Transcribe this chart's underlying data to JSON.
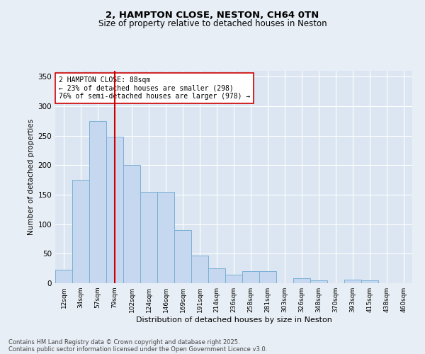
{
  "title1": "2, HAMPTON CLOSE, NESTON, CH64 0TN",
  "title2": "Size of property relative to detached houses in Neston",
  "xlabel": "Distribution of detached houses by size in Neston",
  "ylabel": "Number of detached properties",
  "bin_labels": [
    "12sqm",
    "34sqm",
    "57sqm",
    "79sqm",
    "102sqm",
    "124sqm",
    "146sqm",
    "169sqm",
    "191sqm",
    "214sqm",
    "236sqm",
    "258sqm",
    "281sqm",
    "303sqm",
    "326sqm",
    "348sqm",
    "370sqm",
    "393sqm",
    "415sqm",
    "438sqm",
    "460sqm"
  ],
  "bar_values": [
    23,
    175,
    275,
    248,
    200,
    155,
    155,
    90,
    47,
    25,
    14,
    21,
    21,
    0,
    8,
    5,
    0,
    6,
    5,
    0,
    0
  ],
  "bar_color": "#c5d8f0",
  "bar_edge_color": "#7aafd4",
  "vline_x": 3.0,
  "vline_color": "#cc0000",
  "annotation_text": "2 HAMPTON CLOSE: 88sqm\n← 23% of detached houses are smaller (298)\n76% of semi-detached houses are larger (978) →",
  "annotation_box_color": "#ffffff",
  "annotation_box_edge": "#cc0000",
  "ylim": [
    0,
    360
  ],
  "yticks": [
    0,
    50,
    100,
    150,
    200,
    250,
    300,
    350
  ],
  "background_color": "#e8eef5",
  "plot_bg_color": "#dce6f2",
  "grid_color": "#ffffff",
  "footer1": "Contains HM Land Registry data © Crown copyright and database right 2025.",
  "footer2": "Contains public sector information licensed under the Open Government Licence v3.0."
}
